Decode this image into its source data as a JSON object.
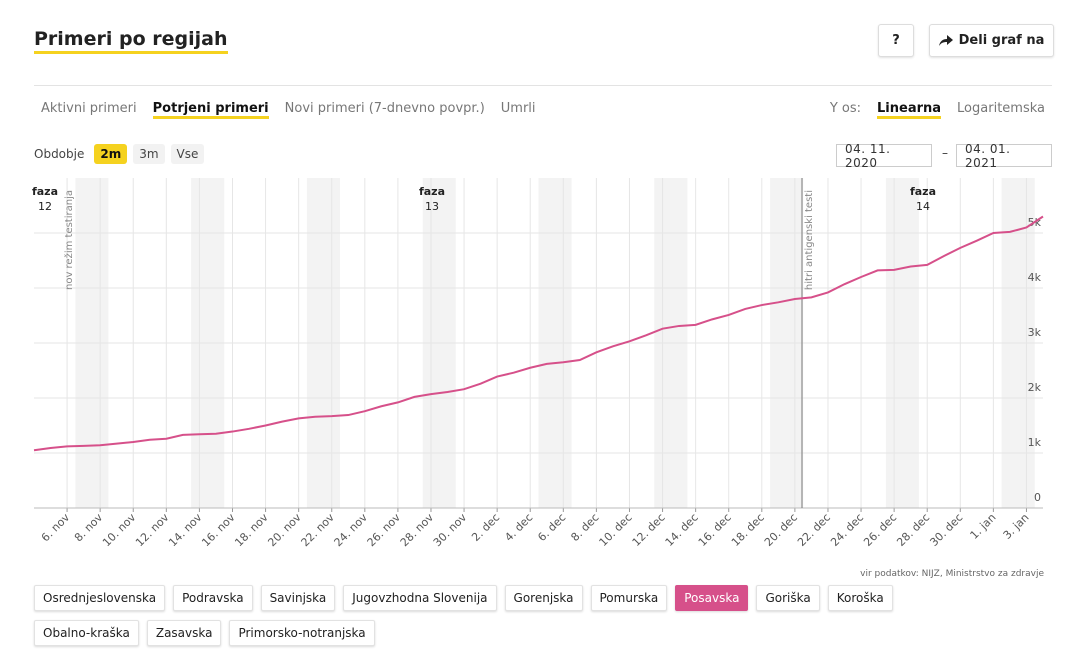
{
  "header": {
    "title": "Primeri po regijah",
    "help": "?",
    "share": "Deli graf na"
  },
  "tabs": {
    "items": [
      "Aktivni primeri",
      "Potrjeni primeri",
      "Novi primeri (7-dnevno povpr.)",
      "Umrli"
    ],
    "active": 1
  },
  "y_axis_toggle": {
    "label": "Y os:",
    "options": [
      "Linearna",
      "Logaritemska"
    ],
    "active": 0
  },
  "period": {
    "label": "Obdobje",
    "options": [
      "2m",
      "3m",
      "Vse"
    ],
    "active": 0
  },
  "date_range": {
    "from": "04. 11. 2020",
    "separator": "–",
    "to": "04. 01. 2021"
  },
  "chart_data": {
    "type": "line",
    "color": "#d6508a",
    "categories": [
      null,
      null,
      "6. nov",
      null,
      "8. nov",
      null,
      "10. nov",
      null,
      "12. nov",
      null,
      "14. nov",
      null,
      "16. nov",
      null,
      "18. nov",
      null,
      "20. nov",
      null,
      "22. nov",
      null,
      "24. nov",
      null,
      "26. nov",
      null,
      "28. nov",
      null,
      "30. nov",
      null,
      "2. dec",
      null,
      "4. dec",
      null,
      "6. dec",
      null,
      "8. dec",
      null,
      "10. dec",
      null,
      "12. dec",
      null,
      "14. dec",
      null,
      "16. dec",
      null,
      "18. dec",
      null,
      "20. dec",
      null,
      "22. dec",
      null,
      "24. dec",
      null,
      "26. dec",
      null,
      "28. dec",
      null,
      "30. dec",
      null,
      "1. jan",
      null,
      "3. jan",
      null
    ],
    "values": [
      1050,
      1090,
      1120,
      1130,
      1140,
      1170,
      1200,
      1240,
      1260,
      1330,
      1340,
      1350,
      1390,
      1440,
      1500,
      1570,
      1630,
      1660,
      1670,
      1690,
      1760,
      1850,
      1920,
      2020,
      2070,
      2110,
      2160,
      2260,
      2390,
      2460,
      2550,
      2620,
      2650,
      2690,
      2830,
      2940,
      3030,
      3140,
      3260,
      3310,
      3330,
      3430,
      3510,
      3620,
      3690,
      3740,
      3800,
      3830,
      3920,
      4070,
      4200,
      4320,
      4330,
      4390,
      4420,
      4580,
      4730,
      4860,
      5000,
      5020,
      5100,
      5300
    ],
    "ylim": [
      0,
      6000
    ],
    "yticks": [
      0,
      {
        "value": 1000,
        "label": "1k"
      },
      {
        "value": 2000,
        "label": "2k"
      },
      {
        "value": 3000,
        "label": "3k"
      },
      {
        "value": 4000,
        "label": "4k"
      },
      {
        "value": 5000,
        "label": "5k"
      }
    ],
    "grid": true,
    "phases": [
      {
        "label": "faza",
        "number": 12
      },
      {
        "label": "faza",
        "number": 13
      },
      {
        "label": "faza",
        "number": 14
      }
    ],
    "markers": [
      "nov režim testiranja",
      "hitri antigenski testi"
    ]
  },
  "source": "vir podatkov: NIJZ, Ministrstvo za zdravje",
  "regions": {
    "items": [
      "Osrednjeslovenska",
      "Podravska",
      "Savinjska",
      "Jugovzhodna Slovenija",
      "Gorenjska",
      "Pomurska",
      "Posavska",
      "Goriška",
      "Koroška",
      "Obalno-kraška",
      "Zasavska",
      "Primorsko-notranjska"
    ],
    "selected": 6
  }
}
